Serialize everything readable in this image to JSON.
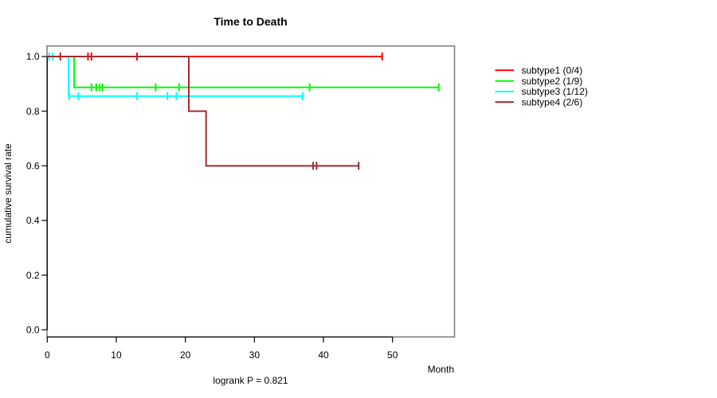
{
  "chart_data": {
    "type": "line",
    "chart_kind": "kaplan-meier-step",
    "title": "Time to Death",
    "xlabel": "Month",
    "ylabel": "cumulative survival rate",
    "annotation": "logrank P = 0.821",
    "logrank_p": 0.821,
    "xlim": [
      0,
      59
    ],
    "ylim": [
      0,
      1.04
    ],
    "x_ticks": [
      0,
      10,
      20,
      30,
      40,
      50
    ],
    "x_tick_labels": [
      "0",
      "10",
      "20",
      "30",
      "40",
      "50"
    ],
    "y_ticks": [
      0.0,
      0.2,
      0.4,
      0.6,
      0.8,
      1.0
    ],
    "y_tick_labels": [
      "0.0",
      "0.2",
      "0.4",
      "0.6",
      "0.8",
      "1.0"
    ],
    "grid": false,
    "legend_position": "right-outside",
    "frame_color": "#808080",
    "axis_color": "#000000",
    "series": [
      {
        "name": "subtype1 (0/4)",
        "color": "#ff0000",
        "start_survival": 1.0,
        "events": [],
        "censored_months": [
          5.9,
          6.4,
          13.0
        ],
        "end_month": 48.5,
        "end_censored": true
      },
      {
        "name": "subtype2 (1/9)",
        "color": "#00ff00",
        "start_survival": 1.0,
        "events": [
          {
            "month": 3.9,
            "survival": 0.887
          }
        ],
        "censored_months": [
          6.4,
          7.1,
          7.6,
          8.0,
          15.7,
          19.1,
          38.0
        ],
        "end_month": 56.7,
        "end_censored": true
      },
      {
        "name": "subtype3 (1/12)",
        "color": "#00ffff",
        "start_survival": 1.0,
        "events": [
          {
            "month": 3.1,
            "survival": 0.855
          }
        ],
        "censored_months": [
          0.3,
          0.8,
          3.2,
          4.5,
          13.0,
          17.4,
          18.7
        ],
        "end_month": 37.0,
        "end_censored": true
      },
      {
        "name": "subtype4 (2/6)",
        "color": "#a52a2a",
        "start_survival": 1.0,
        "events": [
          {
            "month": 20.5,
            "survival": 0.8
          },
          {
            "month": 23.0,
            "survival": 0.6
          }
        ],
        "censored_months": [
          1.9,
          38.5,
          39.0
        ],
        "end_month": 45.1,
        "end_censored": true
      }
    ]
  }
}
